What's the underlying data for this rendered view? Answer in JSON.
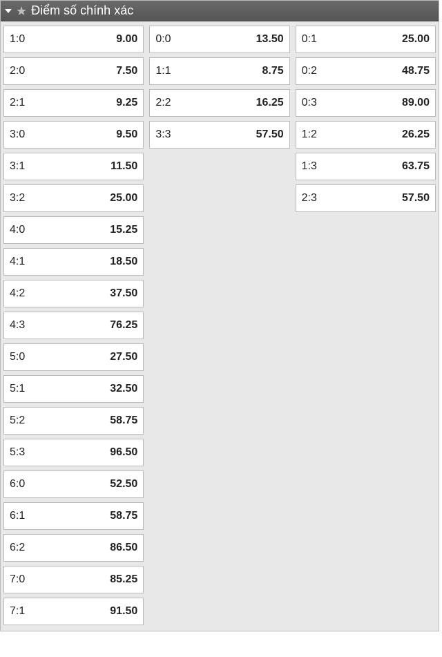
{
  "header": {
    "title": "Điểm số chính xác"
  },
  "columns": {
    "home": [
      {
        "score": "1:0",
        "odds": "9.00"
      },
      {
        "score": "2:0",
        "odds": "7.50"
      },
      {
        "score": "2:1",
        "odds": "9.25"
      },
      {
        "score": "3:0",
        "odds": "9.50"
      },
      {
        "score": "3:1",
        "odds": "11.50"
      },
      {
        "score": "3:2",
        "odds": "25.00"
      },
      {
        "score": "4:0",
        "odds": "15.25"
      },
      {
        "score": "4:1",
        "odds": "18.50"
      },
      {
        "score": "4:2",
        "odds": "37.50"
      },
      {
        "score": "4:3",
        "odds": "76.25"
      },
      {
        "score": "5:0",
        "odds": "27.50"
      },
      {
        "score": "5:1",
        "odds": "32.50"
      },
      {
        "score": "5:2",
        "odds": "58.75"
      },
      {
        "score": "5:3",
        "odds": "96.50"
      },
      {
        "score": "6:0",
        "odds": "52.50"
      },
      {
        "score": "6:1",
        "odds": "58.75"
      },
      {
        "score": "6:2",
        "odds": "86.50"
      },
      {
        "score": "7:0",
        "odds": "85.25"
      },
      {
        "score": "7:1",
        "odds": "91.50"
      }
    ],
    "draw": [
      {
        "score": "0:0",
        "odds": "13.50"
      },
      {
        "score": "1:1",
        "odds": "8.75"
      },
      {
        "score": "2:2",
        "odds": "16.25"
      },
      {
        "score": "3:3",
        "odds": "57.50"
      }
    ],
    "away": [
      {
        "score": "0:1",
        "odds": "25.00"
      },
      {
        "score": "0:2",
        "odds": "48.75"
      },
      {
        "score": "0:3",
        "odds": "89.00"
      },
      {
        "score": "1:2",
        "odds": "26.25"
      },
      {
        "score": "1:3",
        "odds": "63.75"
      },
      {
        "score": "2:3",
        "odds": "57.50"
      }
    ]
  }
}
